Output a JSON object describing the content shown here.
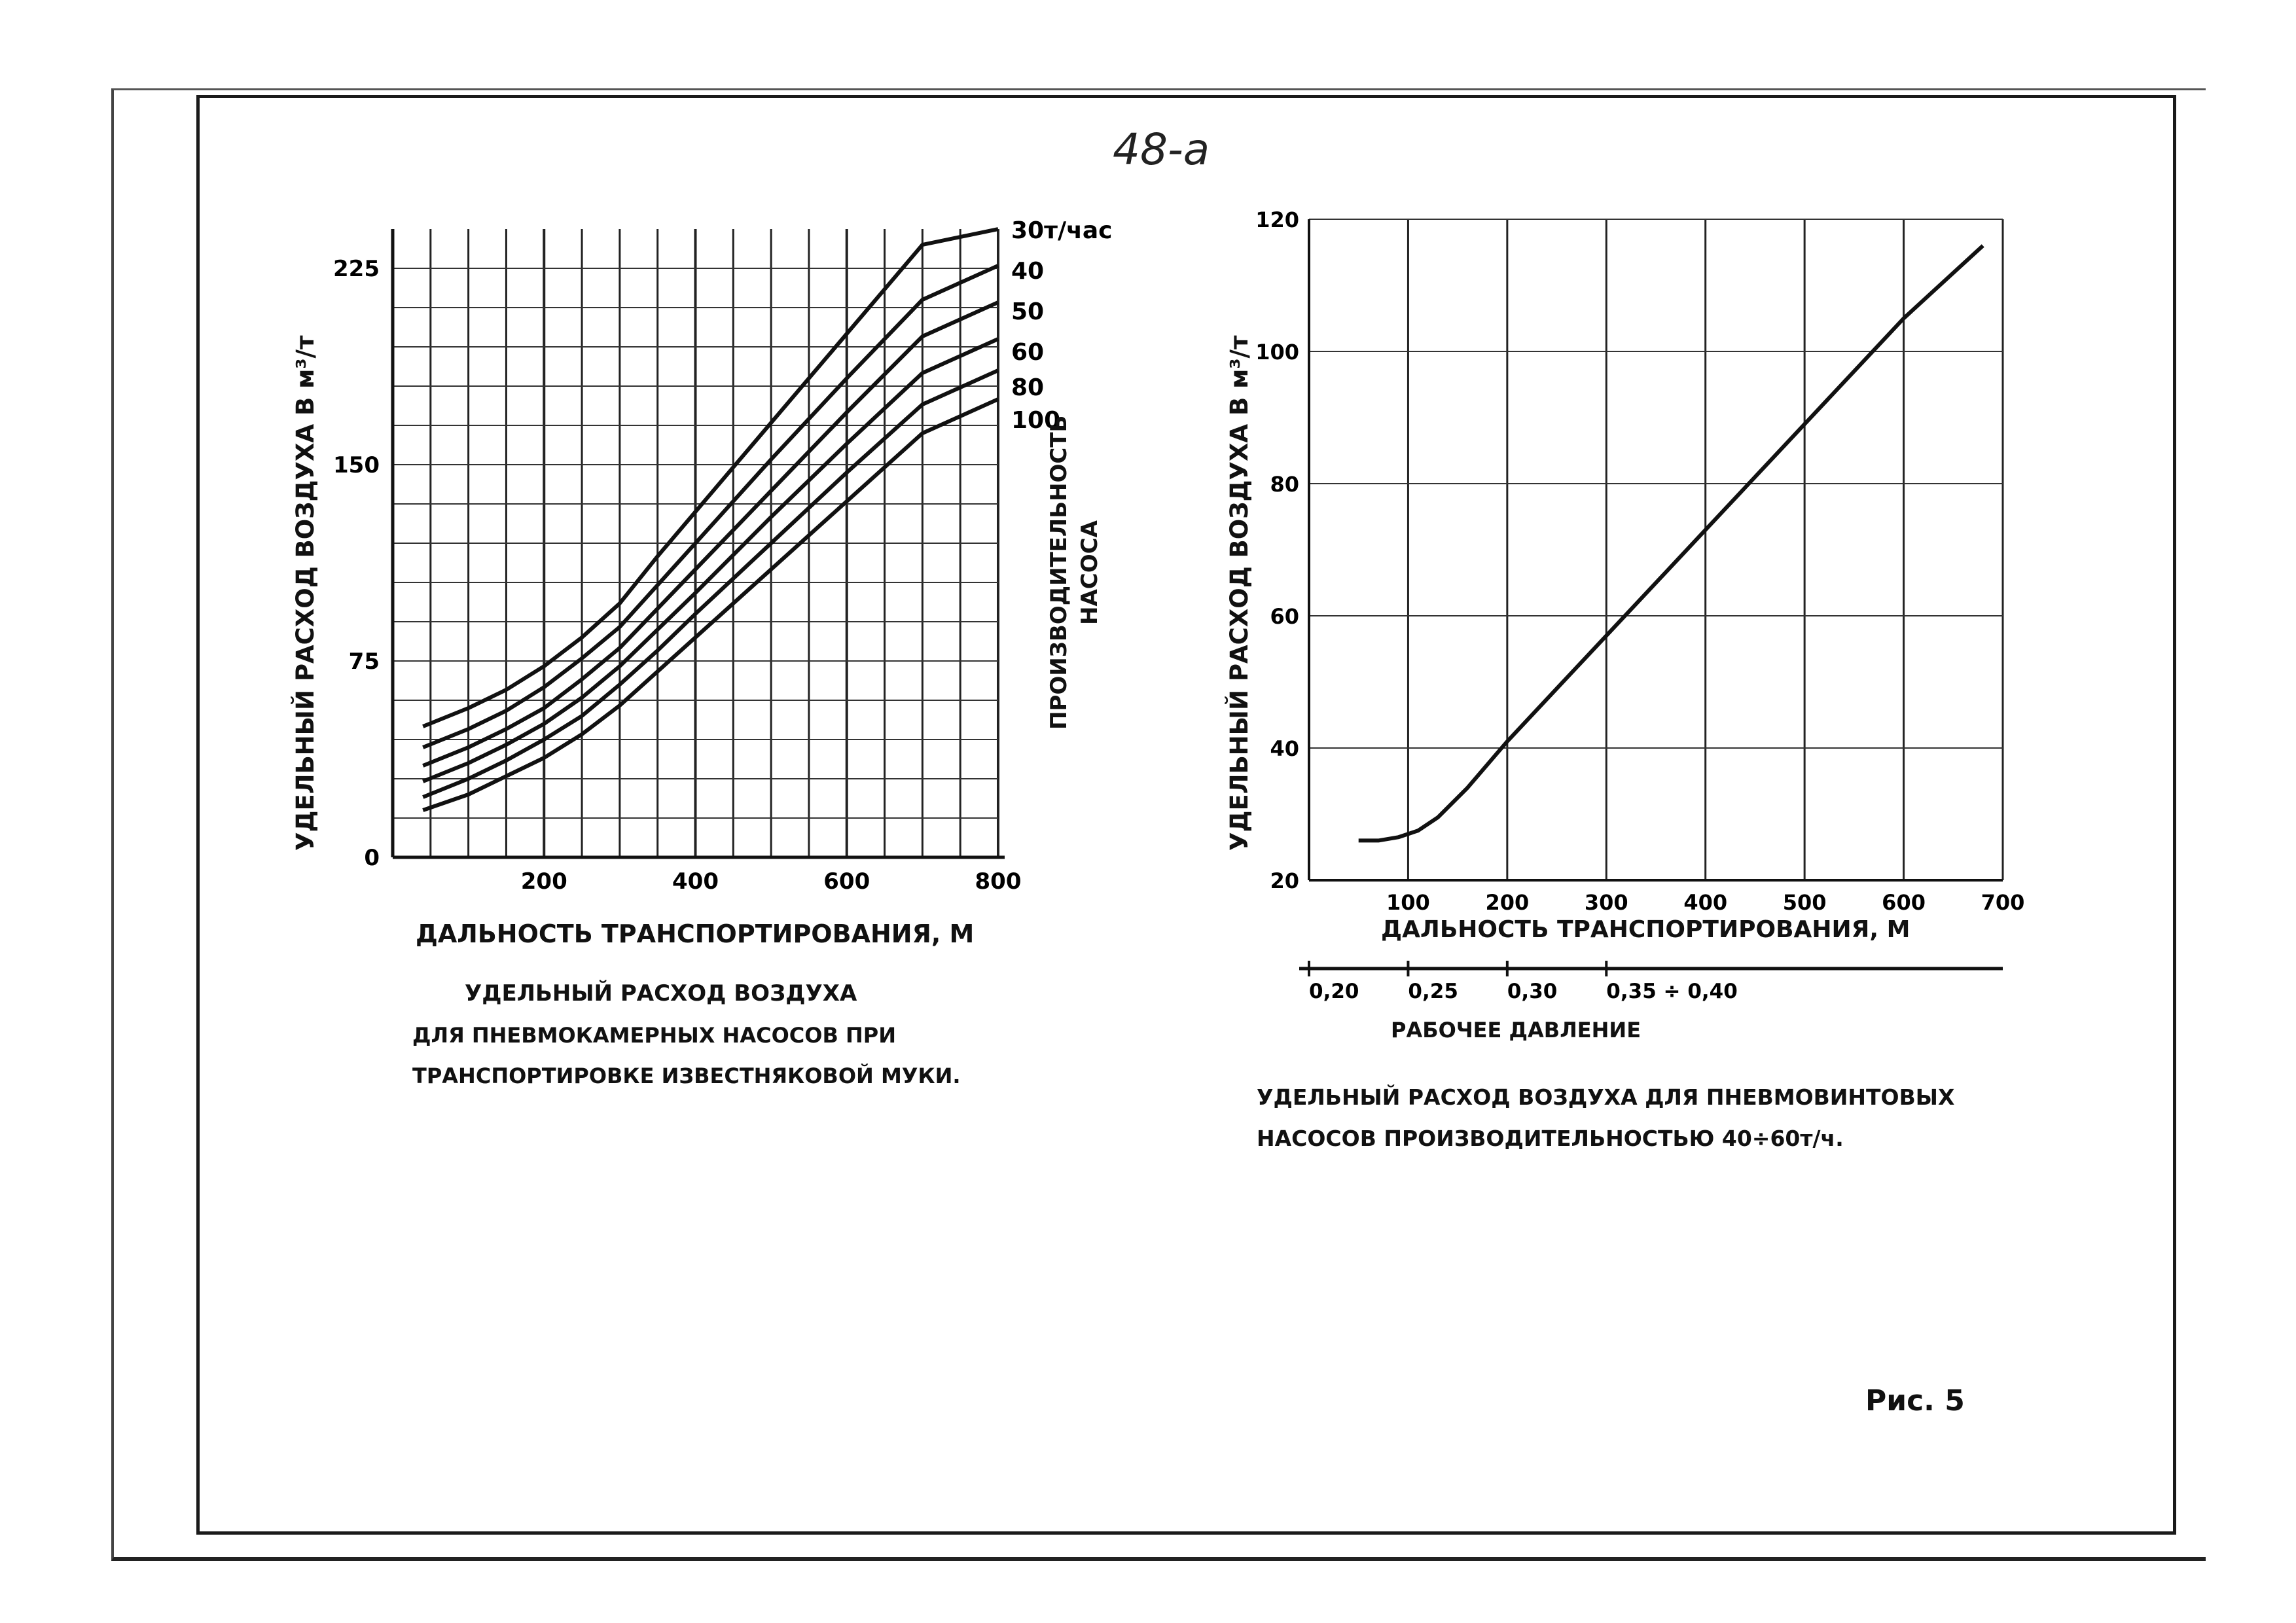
{
  "page": {
    "number": "48-a",
    "figure_ref": "Рис. 5"
  },
  "chart_data": [
    {
      "type": "line",
      "title": "",
      "caption_lines": [
        "УДЕЛЬНЫЙ РАСХОД ВОЗДУХА",
        "ДЛЯ ПНЕВМОКАМЕРНЫХ НАСОСОВ ПРИ",
        "ТРАНСПОРТИРОВКЕ ИЗВЕСТНЯКОВОЙ МУКИ."
      ],
      "xlabel": "ДАЛЬНОСТЬ ТРАНСПОРТИРОВАНИЯ, М",
      "ylabel": "УДЕЛЬНЫЙ РАСХОД ВОЗДУХА В м³/т",
      "right_label_lines": [
        "ПРОИЗВОДИТЕЛЬНОСТЬ",
        "НАСОСА"
      ],
      "xlim": [
        0,
        800
      ],
      "ylim": [
        0,
        240
      ],
      "xticks": [
        200,
        400,
        600,
        800
      ],
      "yticks": [
        0,
        75,
        150,
        225
      ],
      "grid": true,
      "series": [
        {
          "name": "30т/час",
          "x": [
            40,
            100,
            150,
            200,
            250,
            300,
            350,
            400,
            500,
            600,
            700,
            800
          ],
          "y": [
            50,
            57,
            64,
            73,
            84,
            97,
            115,
            132,
            166,
            200,
            234,
            240
          ]
        },
        {
          "name": "40",
          "x": [
            40,
            100,
            150,
            200,
            250,
            300,
            350,
            400,
            500,
            600,
            700,
            800
          ],
          "y": [
            42,
            49,
            56,
            65,
            76,
            88,
            104,
            120,
            152,
            183,
            213,
            226
          ]
        },
        {
          "name": "50",
          "x": [
            40,
            100,
            150,
            200,
            250,
            300,
            350,
            400,
            500,
            600,
            700,
            800
          ],
          "y": [
            35,
            42,
            49,
            57,
            68,
            80,
            95,
            110,
            140,
            170,
            199,
            212
          ]
        },
        {
          "name": "60",
          "x": [
            40,
            100,
            150,
            200,
            250,
            300,
            350,
            400,
            500,
            600,
            700,
            800
          ],
          "y": [
            29,
            36,
            43,
            51,
            61,
            73,
            87,
            101,
            130,
            158,
            185,
            198
          ]
        },
        {
          "name": "80",
          "x": [
            40,
            100,
            150,
            200,
            250,
            300,
            350,
            400,
            500,
            600,
            700,
            800
          ],
          "y": [
            23,
            30,
            37,
            45,
            54,
            66,
            79,
            93,
            120,
            147,
            173,
            186
          ]
        },
        {
          "name": "100",
          "x": [
            40,
            100,
            150,
            200,
            250,
            300,
            350,
            400,
            500,
            600,
            700,
            800
          ],
          "y": [
            18,
            24,
            31,
            38,
            47,
            58,
            71,
            84,
            110,
            136,
            162,
            175
          ]
        }
      ]
    },
    {
      "type": "line",
      "title": "",
      "caption_lines": [
        "УДЕЛЬНЫЙ РАСХОД ВОЗДУХА ДЛЯ ПНЕВМОВИНТОВЫХ",
        "НАСОСОВ ПРОИЗВОДИТЕЛЬНОСТЬЮ 40÷60т/ч."
      ],
      "xlabel": "ДАЛЬНОСТЬ ТРАНСПОРТИРОВАНИЯ, М",
      "ylabel": "УДЕЛЬНЫЙ РАСХОД ВОЗДУХА В м³/т",
      "xlim": [
        0,
        700
      ],
      "ylim": [
        20,
        120
      ],
      "xticks": [
        100,
        200,
        300,
        400,
        500,
        600,
        700
      ],
      "yticks": [
        20,
        40,
        60,
        80,
        100,
        120
      ],
      "grid": true,
      "secondary_axis": {
        "label": "РАБОЧЕЕ ДАВЛЕНИЕ",
        "ticks": [
          {
            "x": 0,
            "label": "0,20"
          },
          {
            "x": 100,
            "label": "0,25"
          },
          {
            "x": 200,
            "label": "0,30"
          },
          {
            "x": 300,
            "label": "0,35 ÷ 0,40"
          }
        ]
      },
      "series": [
        {
          "name": "",
          "x": [
            50,
            70,
            90,
            110,
            130,
            160,
            200,
            250,
            300,
            400,
            500,
            600,
            680
          ],
          "y": [
            26,
            26,
            26.5,
            27.5,
            29.5,
            34,
            41,
            49,
            57,
            73,
            89,
            105,
            116
          ]
        }
      ]
    }
  ]
}
